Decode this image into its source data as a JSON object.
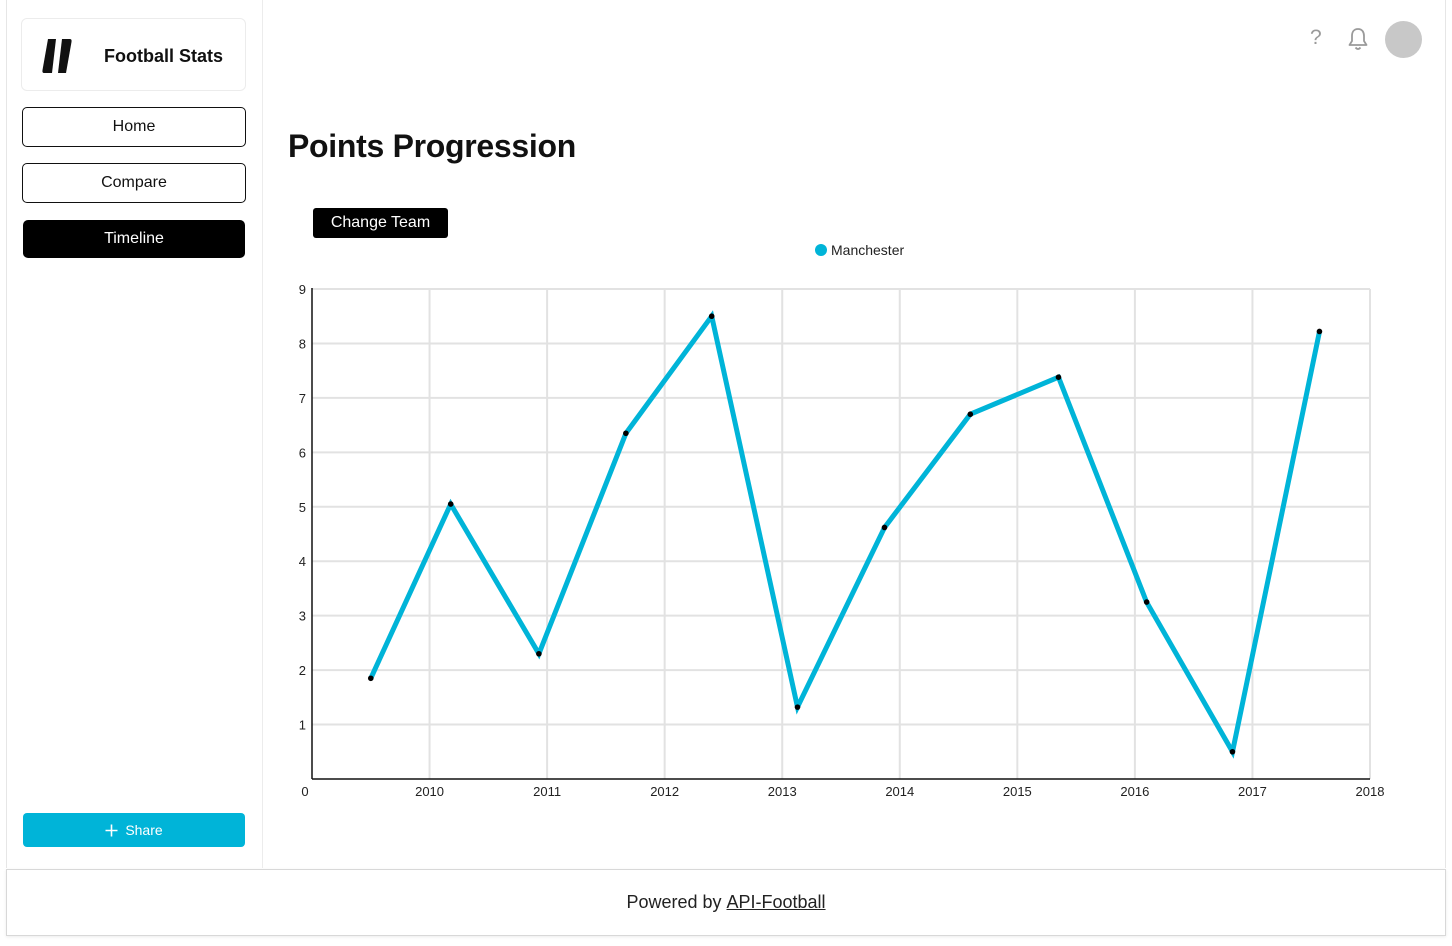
{
  "app": {
    "name": "Football Stats"
  },
  "sidebar": {
    "items": [
      {
        "label": "Home",
        "active": false
      },
      {
        "label": "Compare",
        "active": false
      },
      {
        "label": "Timeline",
        "active": true
      }
    ],
    "share_label": "Share"
  },
  "header": {
    "help_glyph": "?"
  },
  "main": {
    "title": "Points Progression",
    "change_team_label": "Change Team"
  },
  "colors": {
    "accent": "#00b4d8",
    "active_nav": "#000000"
  },
  "chart_data": {
    "type": "line",
    "series": [
      {
        "name": "Manchester",
        "points": [
          {
            "x": 2009.5,
            "y": 1.85
          },
          {
            "x": 2010.18,
            "y": 5.05
          },
          {
            "x": 2010.93,
            "y": 2.3
          },
          {
            "x": 2011.67,
            "y": 6.35
          },
          {
            "x": 2012.4,
            "y": 8.5
          },
          {
            "x": 2013.13,
            "y": 1.32
          },
          {
            "x": 2013.87,
            "y": 4.62
          },
          {
            "x": 2014.6,
            "y": 6.7
          },
          {
            "x": 2015.35,
            "y": 7.38
          },
          {
            "x": 2016.1,
            "y": 3.25
          },
          {
            "x": 2016.83,
            "y": 0.5
          },
          {
            "x": 2017.57,
            "y": 8.22
          }
        ]
      }
    ],
    "x_ticks": [
      "2010",
      "2011",
      "2012",
      "2013",
      "2014",
      "2015",
      "2016",
      "2017",
      "2018"
    ],
    "y_ticks": [
      "0",
      "1",
      "2",
      "3",
      "4",
      "5",
      "6",
      "7",
      "8",
      "9"
    ],
    "xlim": [
      2009,
      2018
    ],
    "ylim": [
      0,
      9
    ],
    "grid": true,
    "legend_position": "top-center"
  },
  "footer": {
    "prefix": "Powered by",
    "link": "API-Football"
  }
}
